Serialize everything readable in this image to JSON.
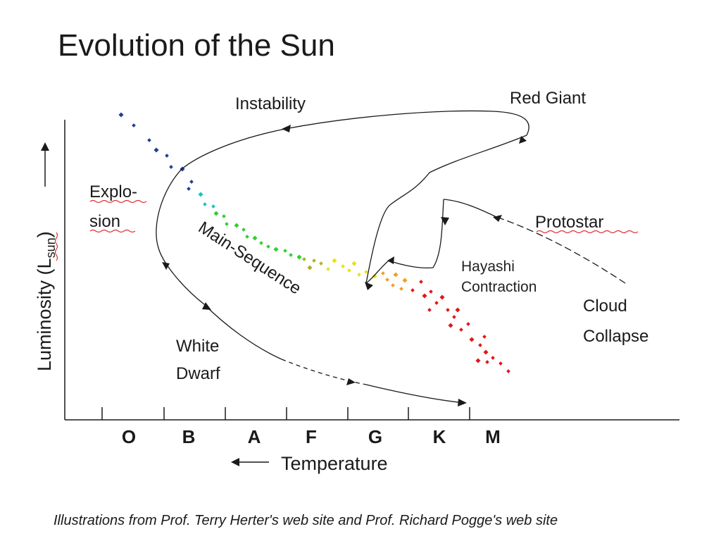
{
  "slide": {
    "title": "Evolution of the Sun",
    "caption": "Illustrations from Prof. Terry Herter's web site and Prof. Richard Pogge's web site"
  },
  "diagram": {
    "y_axis_label": "Luminosity (L",
    "y_axis_subscript": "sun",
    "y_axis_close": ")",
    "x_axis_label": "Temperature",
    "spectral_classes": [
      "O",
      "B",
      "A",
      "F",
      "G",
      "K",
      "M"
    ],
    "labels": {
      "instability": "Instability",
      "red_giant": "Red Giant",
      "explosion_line1": "Explo-",
      "explosion_line2": "sion",
      "main_sequence": "Main-Sequence",
      "protostar": "Protostar",
      "hayashi_line1": "Hayashi",
      "hayashi_line2": "Contraction",
      "cloud_line1": "Cloud",
      "cloud_line2": "Collapse",
      "white_dwarf_line1": "White",
      "white_dwarf_line2": "Dwarf"
    },
    "colors": {
      "hot_stars": "#1f3f9e",
      "blue_green": "#20c0c0",
      "green": "#30d030",
      "yellow": "#e8e020",
      "orange": "#f0a020",
      "cool_stars": "#e01818",
      "spellcheck_underline": "#e03030"
    }
  }
}
